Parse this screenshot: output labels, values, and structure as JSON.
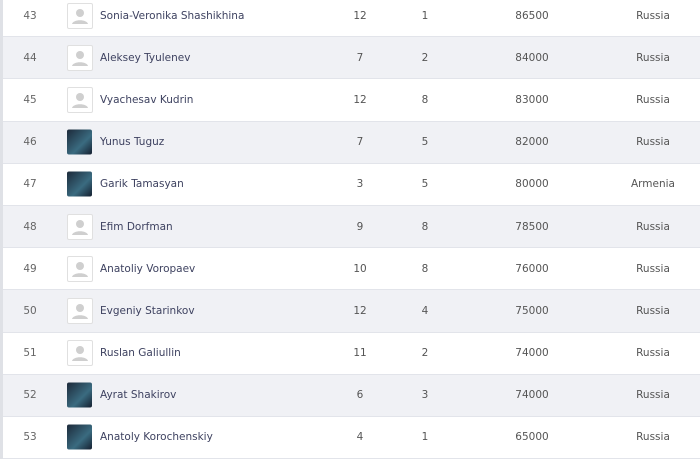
{
  "rows": [
    {
      "rank": "43",
      "name": "Sonia-Veronika Shashikhina",
      "c1": "12",
      "c2": "1",
      "c3": "86500",
      "country": "Russia",
      "avatar": "placeholder"
    },
    {
      "rank": "44",
      "name": "Aleksey Tyulenev",
      "c1": "7",
      "c2": "2",
      "c3": "84000",
      "country": "Russia",
      "avatar": "placeholder"
    },
    {
      "rank": "45",
      "name": "Vyachesav Kudrin",
      "c1": "12",
      "c2": "8",
      "c3": "83000",
      "country": "Russia",
      "avatar": "placeholder"
    },
    {
      "rank": "46",
      "name": "Yunus Tuguz",
      "c1": "7",
      "c2": "5",
      "c3": "82000",
      "country": "Russia",
      "avatar": "photo"
    },
    {
      "rank": "47",
      "name": "Garik Tamasyan",
      "c1": "3",
      "c2": "5",
      "c3": "80000",
      "country": "Armenia",
      "avatar": "photo"
    },
    {
      "rank": "48",
      "name": "Efim Dorfman",
      "c1": "9",
      "c2": "8",
      "c3": "78500",
      "country": "Russia",
      "avatar": "placeholder"
    },
    {
      "rank": "49",
      "name": "Anatoliy Voropaev",
      "c1": "10",
      "c2": "8",
      "c3": "76000",
      "country": "Russia",
      "avatar": "placeholder"
    },
    {
      "rank": "50",
      "name": "Evgeniy Starinkov",
      "c1": "12",
      "c2": "4",
      "c3": "75000",
      "country": "Russia",
      "avatar": "placeholder"
    },
    {
      "rank": "51",
      "name": "Ruslan Galiullin",
      "c1": "11",
      "c2": "2",
      "c3": "74000",
      "country": "Russia",
      "avatar": "placeholder"
    },
    {
      "rank": "52",
      "name": "Ayrat Shakirov",
      "c1": "6",
      "c2": "3",
      "c3": "74000",
      "country": "Russia",
      "avatar": "photo"
    },
    {
      "rank": "53",
      "name": "Anatoly Korochenskiy",
      "c1": "4",
      "c2": "1",
      "c3": "65000",
      "country": "Russia",
      "avatar": "photo"
    }
  ]
}
